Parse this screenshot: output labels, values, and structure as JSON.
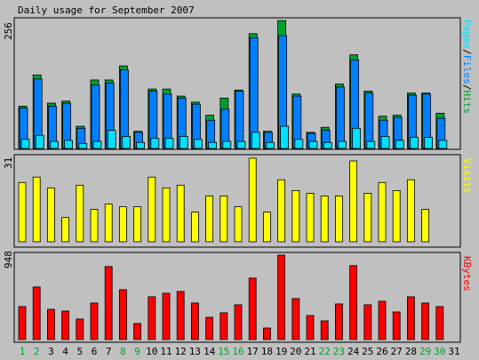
{
  "colors": {
    "background": "#c0c0c0",
    "hits": "#00a030",
    "files": "#0080ff",
    "pages": "#00e0ff",
    "visits": "#ffff00",
    "kbytes": "#ff0000",
    "weekend": "#00a030",
    "weekday": "#000000"
  },
  "chart_data": [
    {
      "type": "bar",
      "title": "Daily usage for September 2007",
      "ylabel_parts": [
        {
          "text": "Pages",
          "series": "pages"
        },
        {
          "text": "/",
          "series": "separator"
        },
        {
          "text": "Files",
          "series": "files"
        },
        {
          "text": "/",
          "series": "separator"
        },
        {
          "text": "Hits",
          "series": "hits"
        }
      ],
      "ymax_label": "256",
      "ylim": [
        0,
        256
      ],
      "categories": [
        "1",
        "2",
        "3",
        "4",
        "5",
        "6",
        "7",
        "8",
        "9",
        "10",
        "11",
        "12",
        "13",
        "14",
        "15",
        "16",
        "17",
        "18",
        "19",
        "20",
        "21",
        "22",
        "23",
        "24",
        "25",
        "26",
        "27",
        "28",
        "29",
        "30",
        "31"
      ],
      "weekend_days": [
        1,
        2,
        8,
        9,
        15,
        16,
        22,
        23,
        29,
        30
      ],
      "series": [
        {
          "key": "hits",
          "values": [
            84,
            146,
            90,
            94,
            44,
            136,
            136,
            164,
            34,
            118,
            118,
            104,
            92,
            66,
            100,
            116,
            228,
            34,
            254,
            108,
            32,
            42,
            128,
            186,
            114,
            64,
            66,
            110,
            110,
            70,
            0
          ]
        },
        {
          "key": "files",
          "values": [
            80,
            138,
            84,
            90,
            40,
            126,
            130,
            156,
            32,
            114,
            108,
            100,
            88,
            56,
            78,
            114,
            220,
            32,
            224,
            104,
            30,
            36,
            122,
            176,
            110,
            56,
            62,
            106,
            108,
            60,
            0
          ]
        },
        {
          "key": "pages",
          "values": [
            18,
            26,
            14,
            16,
            10,
            14,
            36,
            24,
            12,
            20,
            20,
            24,
            18,
            12,
            14,
            14,
            32,
            12,
            44,
            18,
            14,
            12,
            14,
            40,
            14,
            24,
            16,
            22,
            22,
            16,
            0
          ]
        }
      ]
    },
    {
      "type": "bar",
      "ylabel": "Visits",
      "ymax_label": "31",
      "ylim": [
        0,
        31
      ],
      "categories": [
        "1",
        "2",
        "3",
        "4",
        "5",
        "6",
        "7",
        "8",
        "9",
        "10",
        "11",
        "12",
        "13",
        "14",
        "15",
        "16",
        "17",
        "18",
        "19",
        "20",
        "21",
        "22",
        "23",
        "24",
        "25",
        "26",
        "27",
        "28",
        "29",
        "30",
        "31"
      ],
      "series": [
        {
          "key": "visits",
          "values": [
            22,
            24,
            20,
            9,
            21,
            12,
            14,
            13,
            13,
            24,
            20,
            21,
            11,
            17,
            17,
            13,
            31,
            11,
            23,
            19,
            18,
            17,
            17,
            30,
            18,
            22,
            19,
            23,
            12,
            0,
            0
          ]
        }
      ]
    },
    {
      "type": "bar",
      "ylabel": "KBytes",
      "ymax_label": "948",
      "ylim": [
        0,
        948
      ],
      "categories": [
        "1",
        "2",
        "3",
        "4",
        "5",
        "6",
        "7",
        "8",
        "9",
        "10",
        "11",
        "12",
        "13",
        "14",
        "15",
        "16",
        "17",
        "18",
        "19",
        "20",
        "21",
        "22",
        "23",
        "24",
        "25",
        "26",
        "27",
        "28",
        "29",
        "30",
        "31"
      ],
      "series": [
        {
          "key": "kbytes",
          "values": [
            370,
            590,
            340,
            320,
            230,
            410,
            820,
            560,
            180,
            480,
            520,
            540,
            410,
            250,
            300,
            390,
            690,
            130,
            948,
            460,
            270,
            210,
            400,
            830,
            390,
            430,
            310,
            480,
            410,
            370,
            0
          ]
        }
      ]
    }
  ]
}
